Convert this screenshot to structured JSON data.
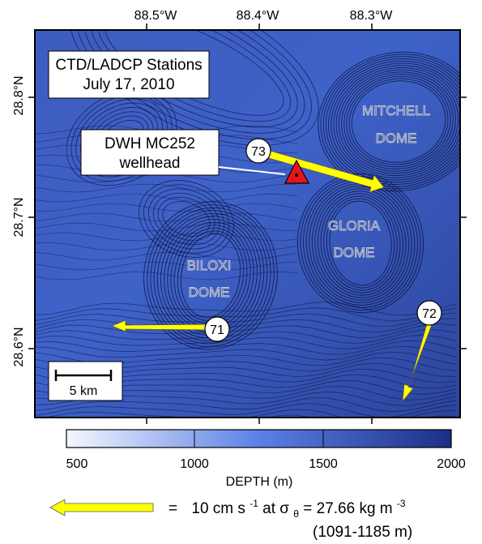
{
  "axes": {
    "lon_labels": [
      "88.5°W",
      "88.4°W",
      "88.3°W"
    ],
    "lat_labels": [
      "28.8°N",
      "28.7°N",
      "28.6°N"
    ]
  },
  "title": {
    "line1": "CTD/LADCP Stations",
    "line2": "July 17, 2010"
  },
  "wellhead": {
    "line1": "DWH MC252",
    "line2": "wellhead",
    "marker_color": "#e8141c"
  },
  "features": {
    "mitchell": [
      "MITCHELL",
      "DOME"
    ],
    "gloria": [
      "GLORIA",
      "DOME"
    ],
    "biloxi": [
      "BILOXI",
      "DOME"
    ]
  },
  "stations": [
    {
      "id": "73"
    },
    {
      "id": "71"
    },
    {
      "id": "72"
    }
  ],
  "scale_bar": {
    "label": "5 km"
  },
  "colorbar": {
    "ticks": [
      "500",
      "1000",
      "1500",
      "2000"
    ],
    "title": "DEPTH (m)",
    "colors": [
      "#f4f7fe",
      "#5b80e6",
      "#1c2f86"
    ]
  },
  "legend": {
    "lhs": "=",
    "text_a": "10 cm s",
    "sup1": "-1",
    "text_b": " at σ",
    "sub_theta": "θ",
    "text_c": " = 27.66 kg m",
    "sup2": "-3",
    "range": "(1091-1185 m)",
    "arrow_color": "#ffff00"
  }
}
